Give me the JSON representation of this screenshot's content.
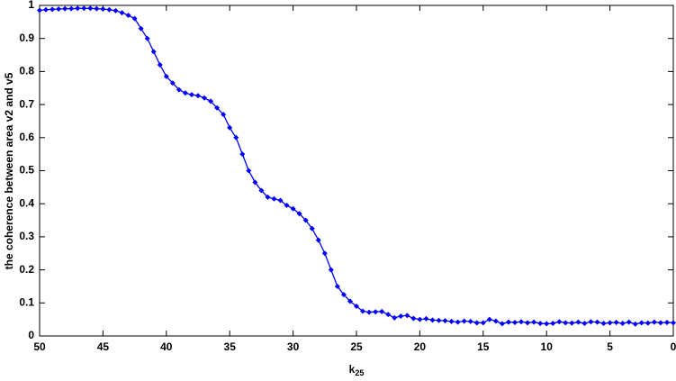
{
  "chart_data": {
    "type": "line",
    "x_label": "k",
    "x_label_subscript": "25",
    "y_label": "the coherence between area v2 and v5",
    "x": [
      50,
      49.5,
      49,
      48.5,
      48,
      47.5,
      47,
      46.5,
      46,
      45.5,
      45,
      44.5,
      44,
      43.5,
      43,
      42.5,
      42,
      41.5,
      41,
      40.5,
      40,
      39.5,
      39,
      38.5,
      38,
      37.5,
      37,
      36.5,
      36,
      35.5,
      35,
      34.5,
      34,
      33.5,
      33,
      32.5,
      32,
      31.5,
      31,
      30.5,
      30,
      29.5,
      29,
      28.5,
      28,
      27.5,
      27,
      26.5,
      26,
      25.5,
      25,
      24.5,
      24,
      23.5,
      23,
      22.5,
      22,
      21.5,
      21,
      20.5,
      20,
      19.5,
      19,
      18.5,
      18,
      17.5,
      17,
      16.5,
      16,
      15.5,
      15,
      14.5,
      14,
      13.5,
      13,
      12.5,
      12,
      11.5,
      11,
      10.5,
      10,
      9.5,
      9,
      8.5,
      8,
      7.5,
      7,
      6.5,
      6,
      5.5,
      5,
      4.5,
      4,
      3.5,
      3,
      2.5,
      2,
      1.5,
      1,
      0.5,
      0
    ],
    "series": [
      {
        "color": "#0000ff",
        "values": [
          0.985,
          0.987,
          0.988,
          0.989,
          0.99,
          0.99,
          0.991,
          0.991,
          0.991,
          0.99,
          0.989,
          0.987,
          0.984,
          0.978,
          0.97,
          0.96,
          0.93,
          0.9,
          0.86,
          0.82,
          0.785,
          0.765,
          0.745,
          0.735,
          0.73,
          0.727,
          0.72,
          0.71,
          0.69,
          0.67,
          0.63,
          0.6,
          0.55,
          0.5,
          0.465,
          0.44,
          0.42,
          0.415,
          0.41,
          0.395,
          0.385,
          0.37,
          0.35,
          0.325,
          0.29,
          0.25,
          0.2,
          0.15,
          0.125,
          0.105,
          0.09,
          0.075,
          0.072,
          0.073,
          0.074,
          0.065,
          0.055,
          0.06,
          0.062,
          0.053,
          0.05,
          0.052,
          0.048,
          0.047,
          0.046,
          0.044,
          0.042,
          0.045,
          0.044,
          0.04,
          0.04,
          0.05,
          0.045,
          0.037,
          0.042,
          0.041,
          0.043,
          0.04,
          0.042,
          0.038,
          0.037,
          0.038,
          0.043,
          0.04,
          0.039,
          0.042,
          0.038,
          0.043,
          0.042,
          0.038,
          0.04,
          0.041,
          0.038,
          0.042,
          0.036,
          0.04,
          0.039,
          0.042,
          0.04,
          0.041,
          0.04
        ]
      }
    ],
    "xlim": [
      50,
      0
    ],
    "xticks": [
      50,
      45,
      40,
      35,
      30,
      25,
      20,
      15,
      10,
      5,
      0
    ],
    "ylim": [
      0,
      1
    ],
    "yticks": [
      0,
      0.1,
      0.2,
      0.3,
      0.4,
      0.5,
      0.6,
      0.7,
      0.8,
      0.9,
      1
    ],
    "grid": false
  }
}
